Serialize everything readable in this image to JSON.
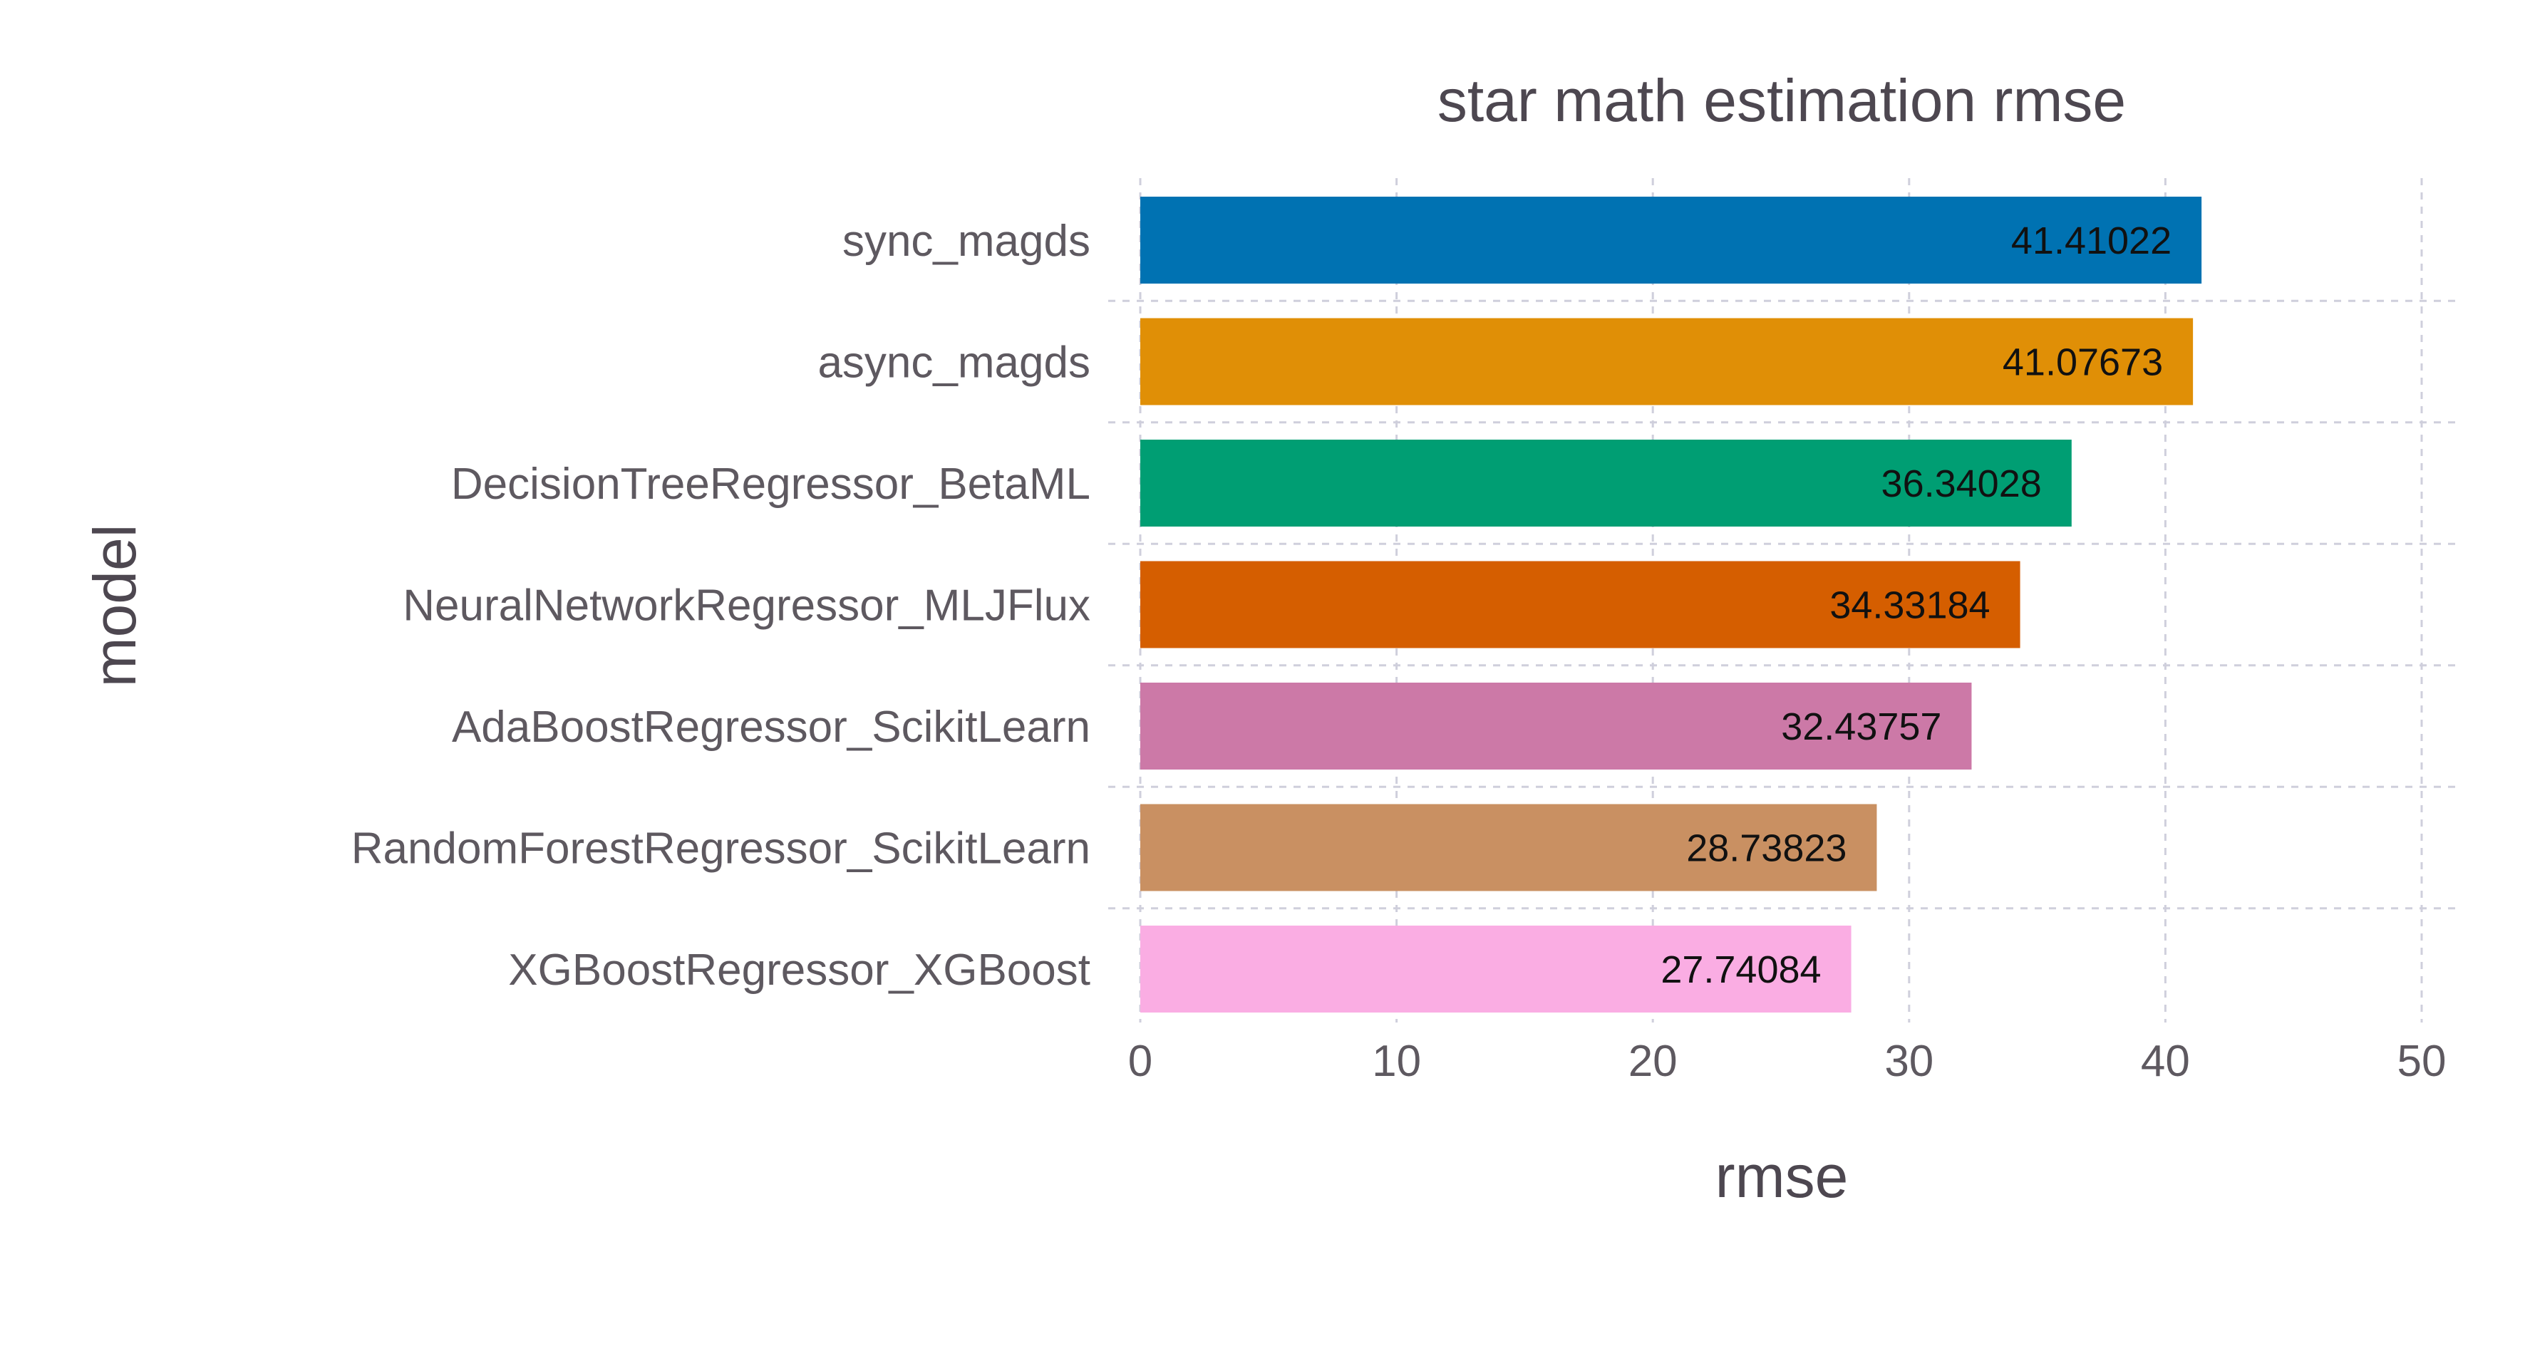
{
  "chart_data": {
    "type": "bar",
    "orientation": "horizontal",
    "title": "star math estimation rmse",
    "xlabel": "rmse",
    "ylabel": "model",
    "xlim": [
      0,
      50
    ],
    "xticks": [
      "0",
      "10",
      "20",
      "30",
      "40",
      "50"
    ],
    "grid": true,
    "legend": "none",
    "categories": [
      "sync_magds",
      "async_magds",
      "DecisionTreeRegressor_BetaML",
      "NeuralNetworkRegressor_MLJFlux",
      "AdaBoostRegressor_ScikitLearn",
      "RandomForestRegressor_ScikitLearn",
      "XGBoostRegressor_XGBoost"
    ],
    "values": [
      41.41022,
      41.07673,
      36.34028,
      34.33184,
      32.43757,
      28.73823,
      27.74084
    ],
    "value_labels": [
      "41.41022",
      "41.07673",
      "36.34028",
      "34.33184",
      "32.43757",
      "28.73823",
      "27.74084"
    ],
    "colors": [
      "#0072b2",
      "#e08f06",
      "#009e73",
      "#d55e00",
      "#cc79a7",
      "#c99062",
      "#faade3"
    ]
  }
}
